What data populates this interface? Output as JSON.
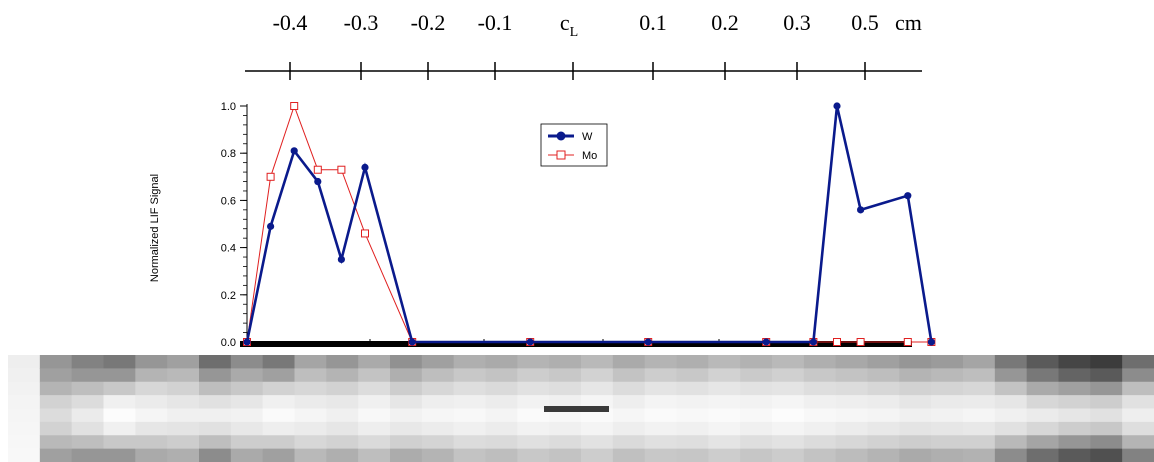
{
  "position_scale": {
    "labels": [
      "-0.4",
      "-0.3",
      "-0.2",
      "-0.1",
      "c",
      "0.1",
      "0.2",
      "0.3",
      "0.5"
    ],
    "center_subscript": "L",
    "unit": "cm"
  },
  "chart_data": {
    "type": "line",
    "ylabel": "Normalized LIF Signal",
    "xlabel": "",
    "ylim": [
      0,
      1.0
    ],
    "y_ticks": [
      "0.0",
      "0.2",
      "0.4",
      "0.6",
      "0.8",
      "1.0"
    ],
    "grid": false,
    "legend_position": "top-center",
    "series": [
      {
        "name": "W",
        "color": "#0a1a8c",
        "marker": "filled-circle",
        "x": [
          0,
          1,
          2,
          3,
          4,
          5,
          7,
          12,
          17,
          22,
          24,
          25,
          26,
          28,
          29
        ],
        "values": [
          0.0,
          0.49,
          0.81,
          0.68,
          0.35,
          0.74,
          0.0,
          0.0,
          0.0,
          0.0,
          0.0,
          1.0,
          0.56,
          0.62,
          0.0
        ]
      },
      {
        "name": "Mo",
        "color": "#e02020",
        "marker": "open-square",
        "x": [
          0,
          1,
          2,
          3,
          4,
          5,
          7,
          12,
          17,
          22,
          24,
          25,
          26,
          28,
          29
        ],
        "values": [
          0.0,
          0.7,
          1.0,
          0.73,
          0.73,
          0.46,
          0.0,
          0.0,
          0.0,
          0.0,
          0.0,
          0.0,
          0.0,
          0.0,
          0.0
        ]
      }
    ]
  },
  "image_strip": {
    "columns": [
      [
        238,
        240,
        242,
        244,
        245,
        246,
        247,
        248
      ],
      [
        150,
        160,
        180,
        210,
        220,
        210,
        185,
        160
      ],
      [
        130,
        150,
        190,
        220,
        235,
        225,
        190,
        150
      ],
      [
        120,
        150,
        200,
        240,
        252,
        240,
        200,
        150
      ],
      [
        150,
        180,
        215,
        235,
        245,
        230,
        200,
        170
      ],
      [
        160,
        185,
        210,
        230,
        240,
        228,
        205,
        175
      ],
      [
        110,
        150,
        190,
        225,
        240,
        225,
        190,
        140
      ],
      [
        140,
        170,
        200,
        230,
        242,
        232,
        205,
        170
      ],
      [
        120,
        160,
        210,
        240,
        250,
        238,
        205,
        160
      ],
      [
        165,
        190,
        215,
        235,
        245,
        235,
        215,
        185
      ],
      [
        150,
        180,
        210,
        232,
        240,
        230,
        210,
        175
      ],
      [
        170,
        195,
        220,
        240,
        248,
        238,
        218,
        190
      ],
      [
        145,
        175,
        205,
        230,
        242,
        232,
        208,
        172
      ],
      [
        160,
        190,
        215,
        238,
        246,
        236,
        212,
        180
      ],
      [
        175,
        200,
        222,
        240,
        248,
        240,
        220,
        195
      ],
      [
        170,
        195,
        218,
        236,
        244,
        236,
        218,
        190
      ],
      [
        180,
        205,
        225,
        242,
        250,
        242,
        224,
        200
      ],
      [
        175,
        200,
        222,
        240,
        248,
        240,
        220,
        195
      ],
      [
        185,
        210,
        230,
        245,
        250,
        244,
        226,
        205
      ],
      [
        170,
        195,
        220,
        238,
        246,
        238,
        218,
        192
      ],
      [
        180,
        205,
        228,
        244,
        250,
        242,
        224,
        200
      ],
      [
        175,
        200,
        225,
        242,
        248,
        240,
        222,
        198
      ],
      [
        185,
        210,
        230,
        244,
        250,
        244,
        228,
        205
      ],
      [
        178,
        202,
        226,
        242,
        248,
        240,
        222,
        198
      ],
      [
        185,
        208,
        228,
        245,
        252,
        244,
        226,
        204
      ],
      [
        175,
        200,
        222,
        240,
        248,
        240,
        220,
        195
      ],
      [
        168,
        195,
        220,
        238,
        246,
        236,
        215,
        188
      ],
      [
        160,
        190,
        215,
        236,
        244,
        232,
        210,
        180
      ],
      [
        150,
        180,
        210,
        230,
        240,
        228,
        205,
        170
      ],
      [
        155,
        185,
        212,
        234,
        242,
        230,
        208,
        175
      ],
      [
        165,
        190,
        215,
        235,
        245,
        232,
        208,
        178
      ],
      [
        120,
        150,
        195,
        230,
        240,
        225,
        185,
        140
      ],
      [
        90,
        120,
        170,
        215,
        235,
        215,
        165,
        110
      ],
      [
        70,
        100,
        160,
        210,
        230,
        205,
        150,
        90
      ],
      [
        60,
        90,
        150,
        205,
        225,
        200,
        140,
        80
      ],
      [
        110,
        140,
        190,
        225,
        238,
        222,
        180,
        130
      ]
    ]
  }
}
